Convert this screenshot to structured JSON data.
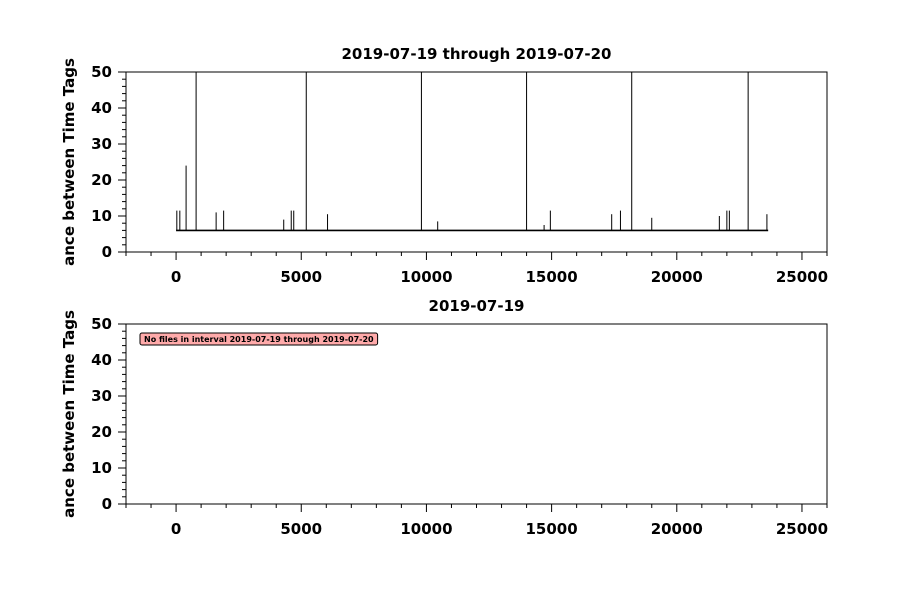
{
  "chart_data": [
    {
      "type": "line",
      "title": "2019-07-19 through 2019-07-20",
      "xlabel": "",
      "ylabel": "ance between Time Tags",
      "xlim": [
        -2000,
        26000
      ],
      "ylim": [
        0,
        50
      ],
      "xticks": [
        0,
        5000,
        10000,
        15000,
        20000,
        25000
      ],
      "yticks": [
        0,
        10,
        20,
        30,
        40,
        50
      ],
      "grid": false,
      "baseline": 6,
      "x_end": 23650,
      "series": [
        {
          "color": "#000000",
          "spikes": [
            {
              "x": 30,
              "y": 11.5
            },
            {
              "x": 150,
              "y": 11.5
            },
            {
              "x": 400,
              "y": 24
            },
            {
              "x": 800,
              "y": 50
            },
            {
              "x": 1600,
              "y": 11
            },
            {
              "x": 1900,
              "y": 11.5
            },
            {
              "x": 4300,
              "y": 9
            },
            {
              "x": 4600,
              "y": 11.5
            },
            {
              "x": 4700,
              "y": 11.5
            },
            {
              "x": 5200,
              "y": 50
            },
            {
              "x": 6050,
              "y": 10.5
            },
            {
              "x": 9800,
              "y": 50
            },
            {
              "x": 10450,
              "y": 8.5
            },
            {
              "x": 14000,
              "y": 50
            },
            {
              "x": 14700,
              "y": 7.5
            },
            {
              "x": 14950,
              "y": 11.5
            },
            {
              "x": 17400,
              "y": 10.5
            },
            {
              "x": 17750,
              "y": 11.5
            },
            {
              "x": 18200,
              "y": 50
            },
            {
              "x": 19000,
              "y": 9.5
            },
            {
              "x": 21700,
              "y": 10
            },
            {
              "x": 22000,
              "y": 11.5
            },
            {
              "x": 22100,
              "y": 11.5
            },
            {
              "x": 22850,
              "y": 50
            },
            {
              "x": 23600,
              "y": 10.5
            }
          ]
        }
      ]
    },
    {
      "type": "line",
      "title": "2019-07-19",
      "xlabel": "",
      "ylabel": "ance between Time Tags",
      "xlim": [
        -2000,
        26000
      ],
      "ylim": [
        0,
        50
      ],
      "xticks": [
        0,
        5000,
        10000,
        15000,
        20000,
        25000
      ],
      "yticks": [
        0,
        10,
        20,
        30,
        40,
        50
      ],
      "grid": false,
      "series": [],
      "annotation": {
        "text": "No files in interval 2019-07-19 through 2019-07-20",
        "fill": "#ffaaaa"
      }
    }
  ]
}
